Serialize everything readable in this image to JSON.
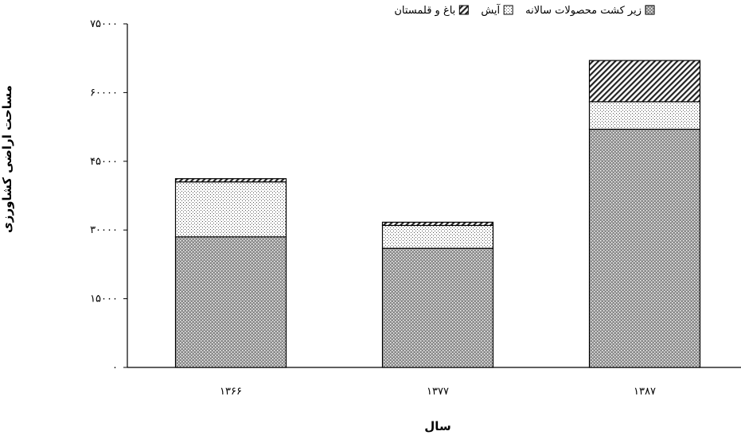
{
  "chart_data": {
    "type": "bar",
    "stacked": true,
    "categories": [
      "۱۳۶۶",
      "۱۳۷۷",
      "۱۳۸۷"
    ],
    "series": [
      {
        "name": "زیر کشت محصولات سالانه",
        "values": [
          28500,
          26000,
          52000
        ],
        "pattern": "dense-dots"
      },
      {
        "name": "آیش",
        "values": [
          12000,
          5000,
          6000
        ],
        "pattern": "sparse-dots"
      },
      {
        "name": "باغ و قلمستان",
        "values": [
          700,
          700,
          9000
        ],
        "pattern": "diagonal-hatch"
      }
    ],
    "xlabel": "سال",
    "ylabel": "مساحت اراضی کشاورزی",
    "ylim": [
      0,
      75000
    ],
    "y_ticks": [
      0,
      15000,
      30000,
      45000,
      60000,
      75000
    ],
    "y_tick_labels": [
      "۰",
      "۱۵۰۰۰",
      "۳۰۰۰۰",
      "۴۵۰۰۰",
      "۶۰۰۰۰",
      "۷۵۰۰۰"
    ],
    "grid": false,
    "legend_position": "top"
  }
}
